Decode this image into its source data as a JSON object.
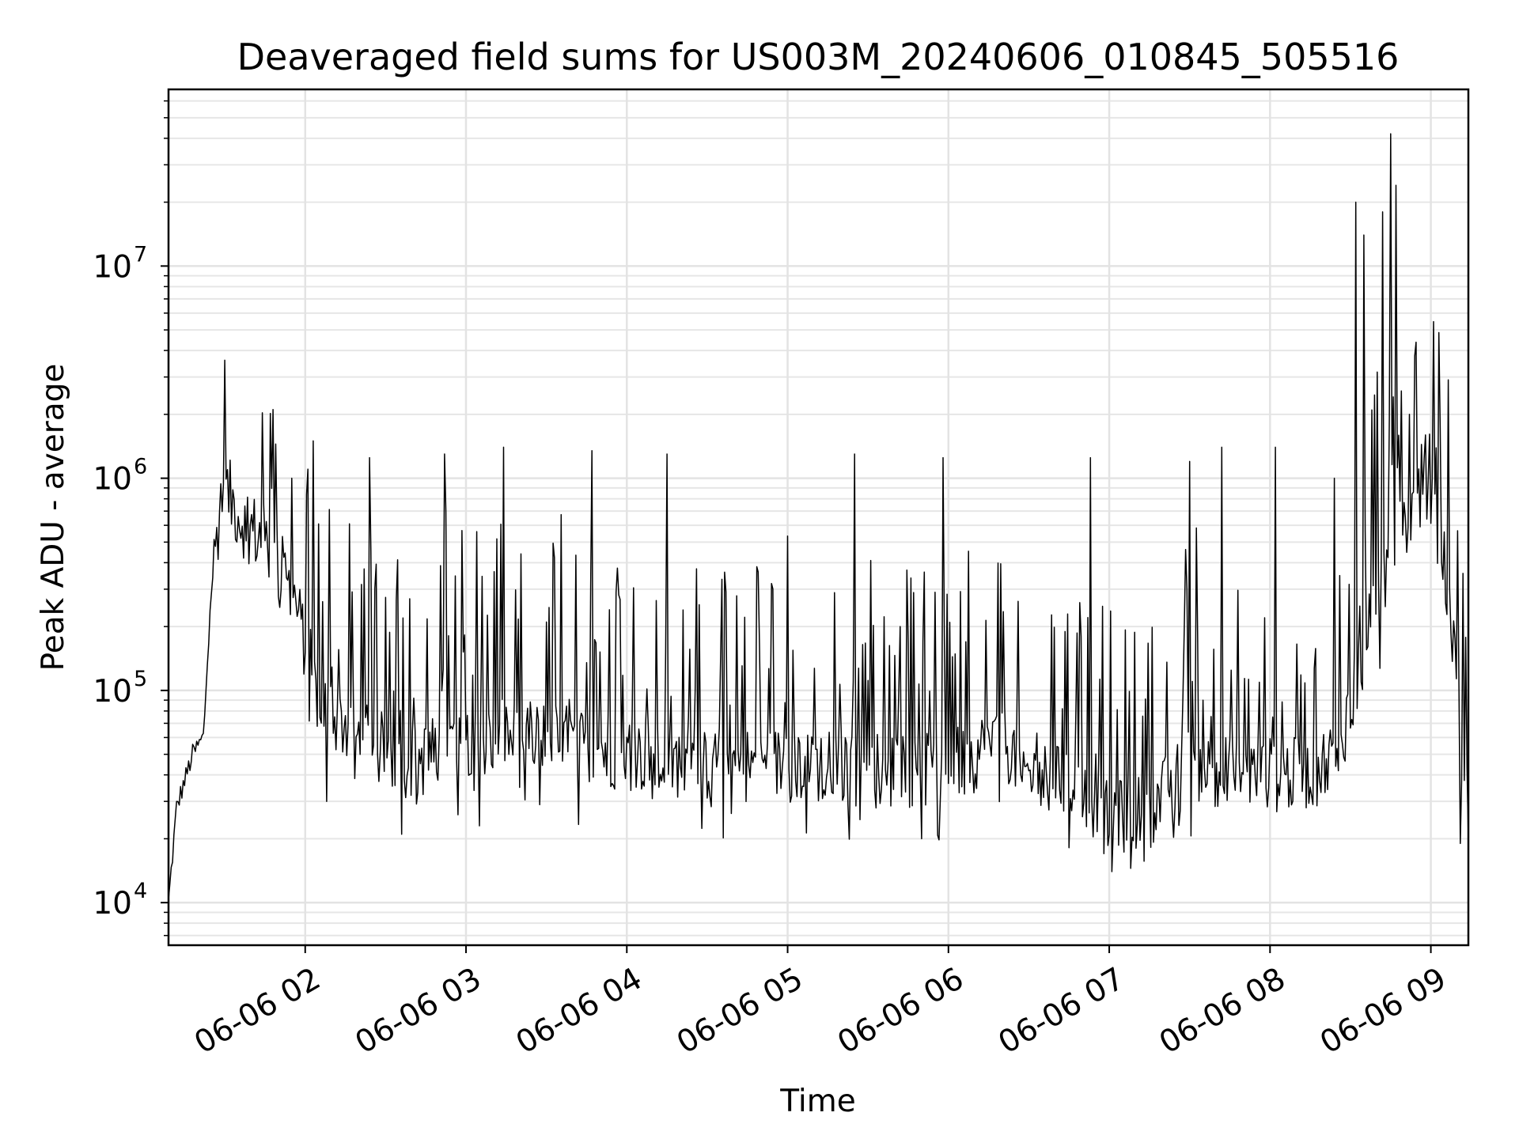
{
  "chart_data": {
    "type": "line",
    "title": "Deaveraged field sums for US003M_20240606_010845_505516",
    "xlabel": "Time",
    "ylabel": "Peak ADU - average",
    "yscale": "log",
    "ylim": [
      6300,
      68000000
    ],
    "xlim": [
      "2024-06-06T01:09:00",
      "2024-06-06T09:14:00"
    ],
    "grid": true,
    "line_color": "#000000",
    "x_ticks": [
      {
        "value": "2024-06-06T02:00",
        "label": "06-06 02"
      },
      {
        "value": "2024-06-06T03:00",
        "label": "06-06 03"
      },
      {
        "value": "2024-06-06T04:00",
        "label": "06-06 04"
      },
      {
        "value": "2024-06-06T05:00",
        "label": "06-06 05"
      },
      {
        "value": "2024-06-06T06:00",
        "label": "06-06 06"
      },
      {
        "value": "2024-06-06T07:00",
        "label": "06-06 07"
      },
      {
        "value": "2024-06-06T08:00",
        "label": "06-06 08"
      },
      {
        "value": "2024-06-06T09:00",
        "label": "06-06 09"
      }
    ],
    "y_ticks": [
      {
        "value": 10000,
        "base": "10",
        "exp": "4"
      },
      {
        "value": 100000,
        "base": "10",
        "exp": "5"
      },
      {
        "value": 1000000,
        "base": "10",
        "exp": "6"
      },
      {
        "value": 10000000,
        "base": "10",
        "exp": "7"
      }
    ],
    "baseline": [
      [
        "2024-06-06T01:09",
        10000
      ],
      [
        "2024-06-06T01:12",
        28000
      ],
      [
        "2024-06-06T01:18",
        50000
      ],
      [
        "2024-06-06T01:22",
        60000
      ],
      [
        "2024-06-06T01:25",
        300000
      ],
      [
        "2024-06-06T01:29",
        950000
      ],
      [
        "2024-06-06T01:36",
        650000
      ],
      [
        "2024-06-06T01:45",
        500000
      ],
      [
        "2024-06-06T01:55",
        300000
      ],
      [
        "2024-06-06T02:05",
        90000
      ],
      [
        "2024-06-06T02:20",
        60000
      ],
      [
        "2024-06-06T02:40",
        45000
      ],
      [
        "2024-06-06T03:00",
        60000
      ],
      [
        "2024-06-06T03:30",
        60000
      ],
      [
        "2024-06-06T04:00",
        50000
      ],
      [
        "2024-06-06T04:30",
        45000
      ],
      [
        "2024-06-06T05:00",
        45000
      ],
      [
        "2024-06-06T05:30",
        42000
      ],
      [
        "2024-06-06T06:00",
        42000
      ],
      [
        "2024-06-06T06:20",
        60000
      ],
      [
        "2024-06-06T06:30",
        40000
      ],
      [
        "2024-06-06T06:50",
        35000
      ],
      [
        "2024-06-06T07:00",
        25000
      ],
      [
        "2024-06-06T07:15",
        27000
      ],
      [
        "2024-06-06T07:30",
        45000
      ],
      [
        "2024-06-06T07:50",
        40000
      ],
      [
        "2024-06-06T08:15",
        40000
      ],
      [
        "2024-06-06T08:25",
        50000
      ],
      [
        "2024-06-06T08:35",
        150000
      ],
      [
        "2024-06-06T08:42",
        350000
      ],
      [
        "2024-06-06T08:50",
        600000
      ],
      [
        "2024-06-06T08:58",
        850000
      ],
      [
        "2024-06-06T09:04",
        500000
      ],
      [
        "2024-06-06T09:07",
        250000
      ],
      [
        "2024-06-06T09:11",
        60000
      ],
      [
        "2024-06-06T09:14",
        30000
      ]
    ],
    "spikes": [
      [
        "2024-06-06T01:30",
        3600000
      ],
      [
        "2024-06-06T01:55",
        1000000
      ],
      [
        "2024-06-06T02:03",
        1500000
      ],
      [
        "2024-06-06T02:24",
        1250000
      ],
      [
        "2024-06-06T02:52",
        1300000
      ],
      [
        "2024-06-06T03:14",
        1400000
      ],
      [
        "2024-06-06T03:47",
        1350000
      ],
      [
        "2024-06-06T04:15",
        1300000
      ],
      [
        "2024-06-06T05:25",
        1300000
      ],
      [
        "2024-06-06T05:58",
        1250000
      ],
      [
        "2024-06-06T06:53",
        1250000
      ],
      [
        "2024-06-06T07:30",
        1200000
      ],
      [
        "2024-06-06T07:42",
        1400000
      ],
      [
        "2024-06-06T08:02",
        1400000
      ],
      [
        "2024-06-06T08:24",
        1000000
      ],
      [
        "2024-06-06T08:32",
        20000000
      ],
      [
        "2024-06-06T08:35",
        14000000
      ],
      [
        "2024-06-06T08:38",
        2100000
      ],
      [
        "2024-06-06T08:42",
        18000000
      ],
      [
        "2024-06-06T08:45",
        42000000
      ],
      [
        "2024-06-06T08:47",
        24000000
      ],
      [
        "2024-06-06T08:52",
        2000000
      ],
      [
        "2024-06-06T08:58",
        1600000
      ]
    ],
    "dips": [
      [
        "2024-06-06T02:08",
        30000
      ],
      [
        "2024-06-06T02:36",
        21000
      ],
      [
        "2024-06-06T03:05",
        23000
      ],
      [
        "2024-06-06T05:50",
        20000
      ],
      [
        "2024-06-06T06:58",
        17000
      ],
      [
        "2024-06-06T07:01",
        14000
      ],
      [
        "2024-06-06T07:08",
        14500
      ],
      [
        "2024-06-06T09:11",
        19000
      ]
    ]
  }
}
